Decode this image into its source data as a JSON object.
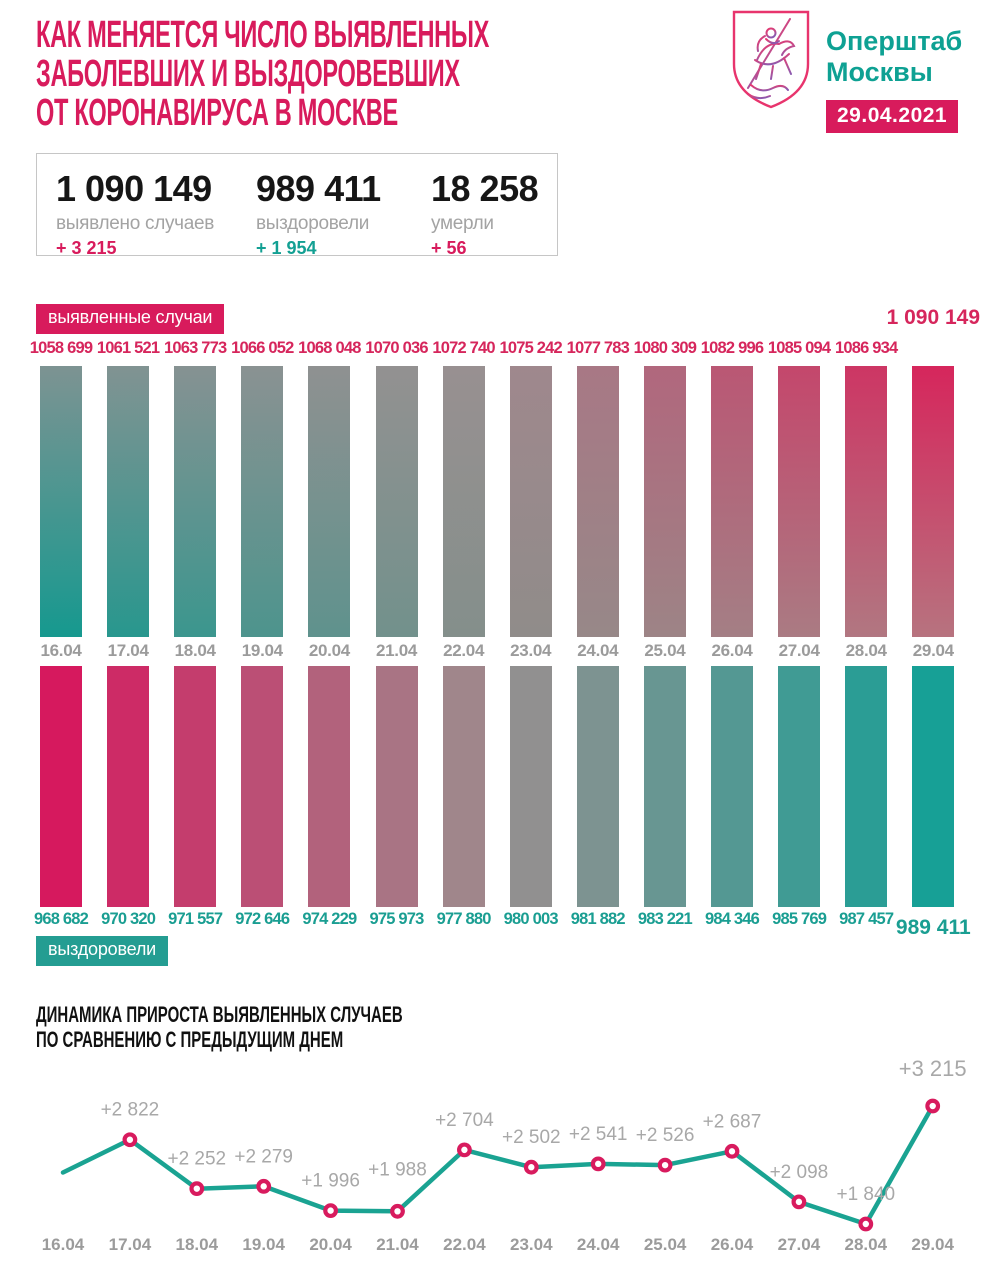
{
  "header": {
    "title_lines": [
      "КАК МЕНЯЕТСЯ ЧИСЛО ВЫЯВЛЕННЫХ",
      "ЗАБОЛЕВШИХ И ВЫЗДОРОВЕВШИХ",
      "ОТ КОРОНАВИРУСА В МОСКВЕ"
    ],
    "logo_icon": "moscow-coat-of-arms",
    "brand_lines": [
      "Оперштаб",
      "Москвы"
    ],
    "date_badge": "29.04.2021"
  },
  "summary": {
    "cases": {
      "value": "1 090 149",
      "label": "выявлено случаев",
      "delta": "+ 3 215"
    },
    "recovered": {
      "value": "989 411",
      "label": "выздоровели",
      "delta": "+ 1 954"
    },
    "deaths": {
      "value": "18 258",
      "label": "умерли",
      "delta": "+ 56"
    }
  },
  "colors": {
    "pink": "#d81b5c",
    "teal": "#13a093",
    "bar_label_pink": "#d6265c",
    "bar_label_teal": "#1a9e92",
    "gray_text": "#9b9b9b",
    "light_gray_text": "#a8a8a8",
    "line_teal": "#1aa392",
    "marker_pink": "#d81b5e",
    "detected_gradient_top": [
      "#7d9392",
      "#9a9091",
      "#d6265c"
    ],
    "detected_gradient_bottom": [
      "#16998f",
      "#8d8e8b",
      "#b7737f"
    ],
    "recovered_gradient": [
      "#d6195e",
      "#9b8f8f",
      "#17a096"
    ]
  },
  "chart_data": [
    {
      "type": "bar",
      "title": "выявленные случаи",
      "categories": [
        "16.04",
        "17.04",
        "18.04",
        "19.04",
        "20.04",
        "21.04",
        "22.04",
        "23.04",
        "24.04",
        "25.04",
        "26.04",
        "27.04",
        "28.04",
        "29.04"
      ],
      "values": [
        1058699,
        1061521,
        1063773,
        1066052,
        1068048,
        1070036,
        1072740,
        1075242,
        1077783,
        1080309,
        1082996,
        1085094,
        1086934,
        1090149
      ],
      "value_labels": [
        "1058 699",
        "1061 521",
        "1063 773",
        "1066 052",
        "1068 048",
        "1070 036",
        "1072 740",
        "1075 242",
        "1077 783",
        "1080 309",
        "1082 996",
        "1085 094",
        "1086 934",
        "1 090 149"
      ],
      "legend_position": "top-left",
      "grid": false
    },
    {
      "type": "bar",
      "title": "выздоровели",
      "categories": [
        "16.04",
        "17.04",
        "18.04",
        "19.04",
        "20.04",
        "21.04",
        "22.04",
        "23.04",
        "24.04",
        "25.04",
        "26.04",
        "27.04",
        "28.04",
        "29.04"
      ],
      "values": [
        968682,
        970320,
        971557,
        972646,
        974229,
        975973,
        977880,
        980003,
        981882,
        983221,
        984346,
        985769,
        987457,
        989411
      ],
      "value_labels": [
        "968 682",
        "970 320",
        "971 557",
        "972 646",
        "974 229",
        "975 973",
        "977 880",
        "980 003",
        "981 882",
        "983 221",
        "984 346",
        "985 769",
        "987 457",
        "989 411"
      ],
      "legend_position": "bottom-left",
      "grid": false,
      "orientation": "hanging-below-axis"
    },
    {
      "type": "line",
      "title": "ДИНАМИКА ПРИРОСТА ВЫЯВЛЕННЫХ СЛУЧАЕВ ПО СРАВНЕНИЮ С ПРЕДЫДУЩИМ ДНЕМ",
      "title_lines": [
        "ДИНАМИКА ПРИРОСТА ВЫЯВЛЕННЫХ СЛУЧАЕВ",
        "ПО СРАВНЕНИЮ С ПРЕДЫДУЩИМ ДНЕМ"
      ],
      "x": [
        "16.04",
        "17.04",
        "18.04",
        "19.04",
        "20.04",
        "21.04",
        "22.04",
        "23.04",
        "24.04",
        "25.04",
        "26.04",
        "27.04",
        "28.04",
        "29.04"
      ],
      "values": [
        2440,
        2822,
        2252,
        2279,
        1996,
        1988,
        2704,
        2502,
        2541,
        2526,
        2687,
        2098,
        1840,
        3215
      ],
      "value_labels": [
        "",
        "+2 822",
        "+2 252",
        "+2 279",
        "+1 996",
        "+1 988",
        "+2 704",
        "+2 502",
        "+2 541",
        "+2 526",
        "+2 687",
        "+2 098",
        "+1 840",
        "+3 215"
      ],
      "first_point_unlabeled_estimate": 2440,
      "ylim": [
        1840,
        3215
      ],
      "grid": false
    }
  ]
}
